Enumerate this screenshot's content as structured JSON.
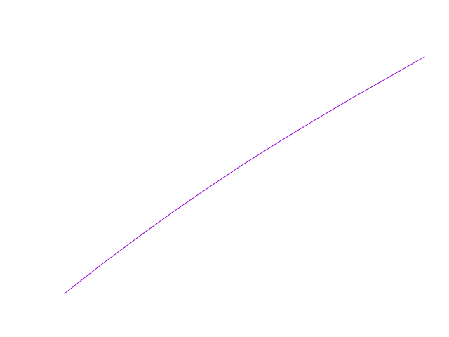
{
  "chart_data": {
    "type": "line",
    "title": "",
    "xlabel": "",
    "ylabel": "",
    "grid": false,
    "legend": "none",
    "axes_visible": false,
    "xlim": [
      0,
      1
    ],
    "ylim": [
      0,
      1
    ],
    "series": [
      {
        "color": "#9400d3",
        "x": [
          0.0,
          0.1,
          0.2,
          0.3,
          0.4,
          0.5,
          0.6,
          0.7,
          0.8,
          0.9,
          1.0
        ],
        "y": [
          0.0,
          0.1194,
          0.2328,
          0.3433,
          0.4478,
          0.5493,
          0.6448,
          0.7373,
          0.8269,
          0.9134,
          1.0
        ]
      }
    ]
  }
}
